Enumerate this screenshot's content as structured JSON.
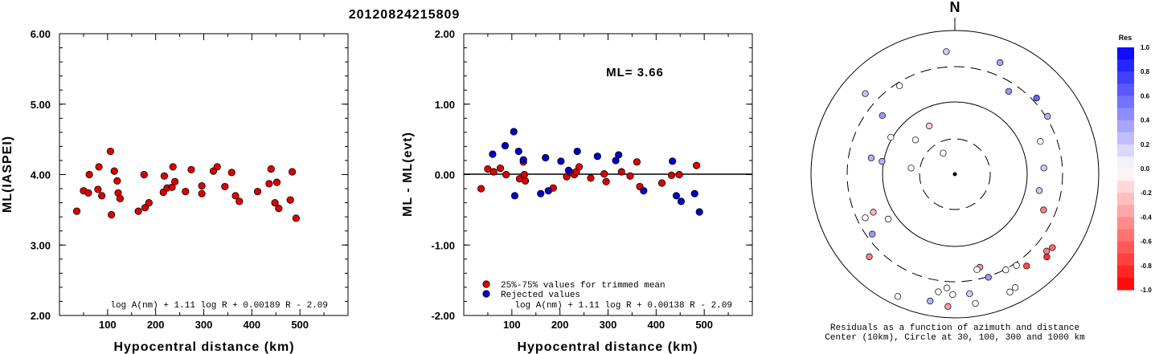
{
  "event_id": "20120824215809",
  "chart_data": [
    {
      "type": "scatter",
      "xlabel": "Hypocentral distance (km)",
      "ylabel": "ML(IASPEI)",
      "xlim": [
        0,
        600
      ],
      "ylim": [
        2.0,
        6.0
      ],
      "x_ticks": [
        "100",
        "200",
        "300",
        "400",
        "500"
      ],
      "y_ticks": [
        "2.00",
        "3.00",
        "4.00",
        "5.00",
        "6.00"
      ],
      "formula": "log A(nm) + 1.11 log R + 0.00189 R - 2.09",
      "series": [
        {
          "color": "#dd0000",
          "points": [
            [
              36,
              3.48
            ],
            [
              50,
              3.77
            ],
            [
              60,
              3.74
            ],
            [
              62,
              4.0
            ],
            [
              80,
              3.79
            ],
            [
              82,
              4.11
            ],
            [
              88,
              3.7
            ],
            [
              106,
              4.33
            ],
            [
              108,
              3.43
            ],
            [
              114,
              4.05
            ],
            [
              120,
              3.91
            ],
            [
              122,
              3.74
            ],
            [
              126,
              3.66
            ],
            [
              164,
              3.48
            ],
            [
              176,
              4.0
            ],
            [
              178,
              3.53
            ],
            [
              186,
              3.6
            ],
            [
              216,
              3.75
            ],
            [
              218,
              3.98
            ],
            [
              224,
              3.81
            ],
            [
              234,
              3.82
            ],
            [
              236,
              4.11
            ],
            [
              240,
              3.9
            ],
            [
              262,
              3.76
            ],
            [
              274,
              4.07
            ],
            [
              296,
              3.73
            ],
            [
              296,
              3.84
            ],
            [
              320,
              4.05
            ],
            [
              328,
              4.11
            ],
            [
              344,
              3.83
            ],
            [
              358,
              4.03
            ],
            [
              366,
              3.7
            ],
            [
              374,
              3.62
            ],
            [
              412,
              3.76
            ],
            [
              436,
              3.87
            ],
            [
              440,
              4.08
            ],
            [
              448,
              3.6
            ],
            [
              452,
              3.89
            ],
            [
              456,
              3.52
            ],
            [
              480,
              3.64
            ],
            [
              484,
              4.04
            ],
            [
              492,
              3.38
            ]
          ]
        }
      ]
    },
    {
      "type": "scatter",
      "xlabel": "Hypocentral distance (km)",
      "ylabel": "ML - ML(evt)",
      "xlim": [
        0,
        600
      ],
      "ylim": [
        -2.0,
        2.0
      ],
      "x_ticks": [
        "100",
        "200",
        "300",
        "400",
        "500"
      ],
      "y_ticks": [
        "-2.00",
        "-1.00",
        "0.00",
        "1.00",
        "2.00"
      ],
      "reference_line": 0.0,
      "annotation": "ML= 3.66",
      "formula": "log A(nm) + 1.11 log R + 0.00138 R - 2.09",
      "series": [
        {
          "name": "25%-75% values for trimmed mean",
          "color": "#dd0000",
          "points": [
            [
              36,
              -0.2
            ],
            [
              50,
              0.08
            ],
            [
              62,
              0.04
            ],
            [
              76,
              0.09
            ],
            [
              88,
              0.0
            ],
            [
              116,
              -0.06
            ],
            [
              124,
              0.18
            ],
            [
              126,
              0.0
            ],
            [
              128,
              -0.09
            ],
            [
              186,
              -0.19
            ],
            [
              214,
              -0.03
            ],
            [
              222,
              0.03
            ],
            [
              230,
              0.0
            ],
            [
              234,
              0.04
            ],
            [
              240,
              0.11
            ],
            [
              264,
              -0.05
            ],
            [
              292,
              0.01
            ],
            [
              296,
              -0.1
            ],
            [
              328,
              0.04
            ],
            [
              346,
              -0.02
            ],
            [
              360,
              0.18
            ],
            [
              366,
              -0.17
            ],
            [
              412,
              -0.12
            ],
            [
              432,
              -0.01
            ],
            [
              448,
              0.0
            ],
            [
              484,
              0.13
            ]
          ]
        },
        {
          "name": "Rejected values",
          "color": "#0000cc",
          "points": [
            [
              60,
              0.29
            ],
            [
              86,
              0.41
            ],
            [
              104,
              0.61
            ],
            [
              106,
              -0.3
            ],
            [
              114,
              0.33
            ],
            [
              124,
              0.21
            ],
            [
              160,
              -0.27
            ],
            [
              170,
              0.24
            ],
            [
              176,
              -0.23
            ],
            [
              202,
              0.19
            ],
            [
              218,
              0.06
            ],
            [
              236,
              0.33
            ],
            [
              278,
              0.26
            ],
            [
              316,
              0.2
            ],
            [
              322,
              0.28
            ],
            [
              374,
              -0.23
            ],
            [
              434,
              0.19
            ],
            [
              442,
              -0.3
            ],
            [
              452,
              -0.38
            ],
            [
              480,
              -0.27
            ],
            [
              490,
              -0.53
            ]
          ]
        }
      ]
    },
    {
      "type": "scatter",
      "subtype": "polar-residuals",
      "north_label": "N",
      "caption_1": "Residuals as a function of azimuth and distance",
      "caption_2": "Center (10km), Circle at 30, 100, 300 and 1000 km",
      "colorbar_title": "Res",
      "colorbar_ticks": [
        "1.0",
        "0.8",
        "0.6",
        "0.4",
        "0.2",
        "0.0",
        "-0.2",
        "-0.4",
        "-0.6",
        "-0.8",
        "-1.0"
      ],
      "colorbar_range": [
        -1.0,
        1.0
      ],
      "points": [
        [
          -4,
          153,
          0.2
        ],
        [
          22,
          150,
          0.35
        ],
        [
          -48,
          150,
          0.25
        ],
        [
          47,
          139,
          0.6
        ],
        [
          58,
          136,
          0.3
        ],
        [
          -32,
          130,
          0.0
        ],
        [
          33,
          123,
          0.4
        ],
        [
          -51,
          116,
          0.4
        ],
        [
          69,
          114,
          0.0
        ],
        [
          86,
          111,
          0.2
        ],
        [
          -79,
          106,
          0.3
        ],
        [
          -80,
          92,
          0.3
        ],
        [
          -116,
          124,
          0.0
        ],
        [
          -60,
          92,
          0.0
        ],
        [
          -49,
          65,
          0.0
        ],
        [
          -82,
          55,
          0.0
        ],
        [
          -28,
          68,
          -0.2
        ],
        [
          -29,
          30,
          0.0
        ],
        [
          -115,
          112,
          -0.3
        ],
        [
          -126,
          127,
          0.4
        ],
        [
          -134,
          148,
          -0.5
        ],
        [
          -124,
          100,
          0.0
        ],
        [
          -155,
          168,
          0.0
        ],
        [
          -169,
          161,
          0.3
        ],
        [
          -179,
          150,
          0.0
        ],
        [
          -176,
          142,
          0.0
        ],
        [
          -172,
          148,
          0.0
        ],
        [
          -177,
          165,
          -0.4
        ],
        [
          171,
          163,
          0.0
        ],
        [
          173,
          150,
          0.2
        ],
        [
          162,
          135,
          0.4
        ],
        [
          165,
          120,
          -0.4
        ],
        [
          167,
          122,
          0.0
        ],
        [
          146,
          137,
          0.0
        ],
        [
          155,
          162,
          0.0
        ],
        [
          152,
          160,
          0.0
        ],
        [
          152,
          135,
          0.0
        ],
        [
          142,
          145,
          -0.7
        ],
        [
          132,
          154,
          -0.8
        ],
        [
          127,
          152,
          -0.6
        ],
        [
          130,
          149,
          -0.5
        ],
        [
          112,
          119,
          -0.5
        ],
        [
          101,
          107,
          0.2
        ]
      ]
    }
  ]
}
